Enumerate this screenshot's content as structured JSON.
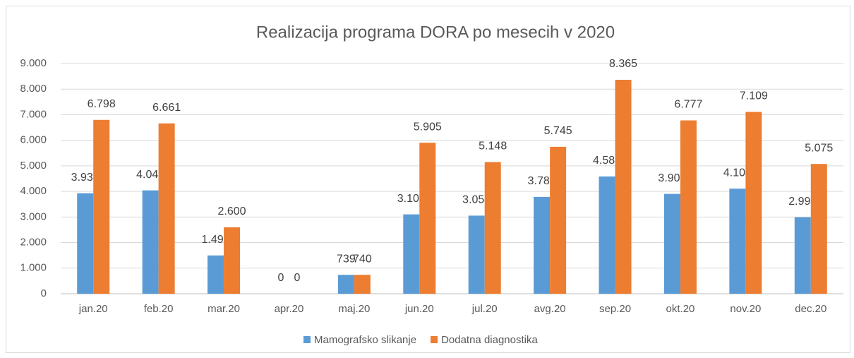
{
  "chart_data": {
    "type": "bar",
    "title": "Realizacija programa DORA po mesecih v 2020",
    "categories": [
      "jan.20",
      "feb.20",
      "mar.20",
      "apr.20",
      "maj.20",
      "jun.20",
      "jul.20",
      "avg.20",
      "sep.20",
      "okt.20",
      "nov.20",
      "dec.20"
    ],
    "series": [
      {
        "name": "Mamografsko slikanje",
        "color": "#5b9bd5",
        "values": [
          3930,
          4042,
          1498,
          0,
          739,
          3103,
          3054,
          3786,
          4586,
          3904,
          4109,
          2993
        ],
        "value_labels": [
          "3.930",
          "4.042",
          "1.498",
          "0",
          "739",
          "3.103",
          "3.054",
          "3.786",
          "4.586",
          "3.904",
          "4.109",
          "2.993"
        ]
      },
      {
        "name": "Dodatna diagnostika",
        "color": "#ed7d31",
        "values": [
          6798,
          6661,
          2600,
          0,
          740,
          5905,
          5148,
          5745,
          8365,
          6777,
          7109,
          5075
        ],
        "value_labels": [
          "6.798",
          "6.661",
          "2.600",
          "0",
          "740",
          "5.905",
          "5.148",
          "5.745",
          "8.365",
          "6.777",
          "7.109",
          "5.075"
        ]
      }
    ],
    "ylim": [
      0,
      9000
    ],
    "yticks": [
      0,
      {
        "value": 1000,
        "label": "1.000"
      },
      {
        "value": 2000,
        "label": "2.000"
      },
      {
        "value": 3000,
        "label": "3.000"
      },
      {
        "value": 4000,
        "label": "4.000"
      },
      {
        "value": 5000,
        "label": "5.000"
      },
      {
        "value": 6000,
        "label": "6.000"
      },
      {
        "value": 7000,
        "label": "7.000"
      },
      {
        "value": 8000,
        "label": "8.000"
      },
      {
        "value": 9000,
        "label": "9.000"
      }
    ],
    "grid": true,
    "legend": "bottom"
  }
}
